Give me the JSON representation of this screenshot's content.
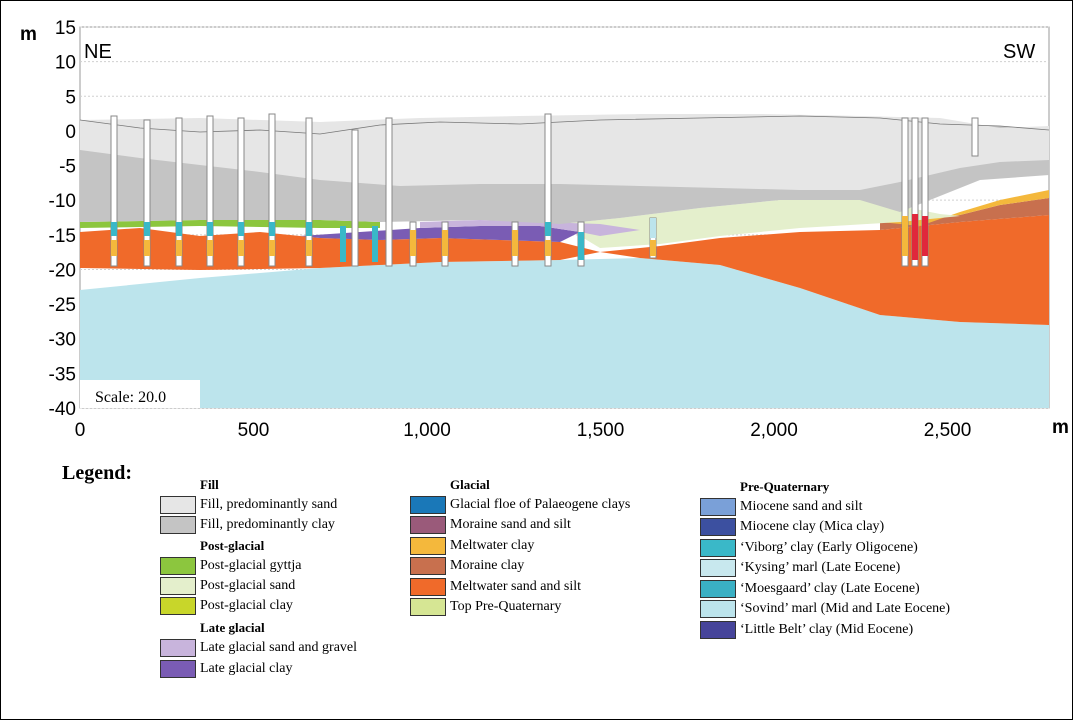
{
  "diagram": {
    "y_unit": "m",
    "x_unit": "m",
    "left_label": "NE",
    "right_label": "SW",
    "scale_text": "Scale: 20.0",
    "y_ticks": [
      "15",
      "10",
      "5",
      "0",
      "-5",
      "-10",
      "-15",
      "-20",
      "-25",
      "-30",
      "-35",
      "-40"
    ],
    "x_ticks": [
      "0",
      "500",
      "1,000",
      "1,500",
      "2,000",
      "2,500"
    ]
  },
  "legend": {
    "title": "Legend:",
    "groups": [
      {
        "heading": "Fill",
        "items": [
          {
            "label": "Fill, predominantly sand",
            "color": "#e6e6e6"
          },
          {
            "label": "Fill, predominantly clay",
            "color": "#c4c4c4"
          }
        ]
      },
      {
        "heading": "Post-glacial",
        "items": [
          {
            "label": "Post-glacial gyttja",
            "color": "#8cc63e"
          },
          {
            "label": "Post-glacial sand",
            "color": "#e4efcc"
          },
          {
            "label": "Post-glacial clay",
            "color": "#c8d62a"
          }
        ]
      },
      {
        "heading": "Late glacial",
        "items": [
          {
            "label": "Late glacial sand and gravel",
            "color": "#c8b4dc"
          },
          {
            "label": "Late glacial clay",
            "color": "#7a5cb4"
          }
        ]
      },
      {
        "heading": "Glacial",
        "items": [
          {
            "label": "Glacial floe of Palaeogene clays",
            "color": "#1a78b8"
          },
          {
            "label": "Moraine sand and silt",
            "color": "#9a5a7a"
          },
          {
            "label": "Meltwater clay",
            "color": "#f4b83c"
          },
          {
            "label": "Moraine clay",
            "color": "#c8704e"
          },
          {
            "label": "Meltwater sand and silt",
            "color": "#f06a2a"
          },
          {
            "label": "Top Pre-Quaternary",
            "color": "#d6e694"
          }
        ]
      },
      {
        "heading": "Pre-Quaternary",
        "items": [
          {
            "label": "Miocene sand and silt",
            "color": "#7aa0d8"
          },
          {
            "label": "Miocene clay (Mica clay)",
            "color": "#3c50a0"
          },
          {
            "label": "‘Viborg’ clay (Early Oligocene)",
            "color": "#3ab8c8"
          },
          {
            "label": "‘Kysing’ marl (Late Eocene)",
            "color": "#c8e8ee"
          },
          {
            "label": "‘Moesgaard’ clay (Late Eocene)",
            "color": "#3ab0c4"
          },
          {
            "label": "‘Sovind’ marl (Mid and Late Eocene)",
            "color": "#bce4ec"
          },
          {
            "label": "‘Little Belt’ clay (Mid Eocene)",
            "color": "#46449a"
          }
        ]
      }
    ]
  }
}
